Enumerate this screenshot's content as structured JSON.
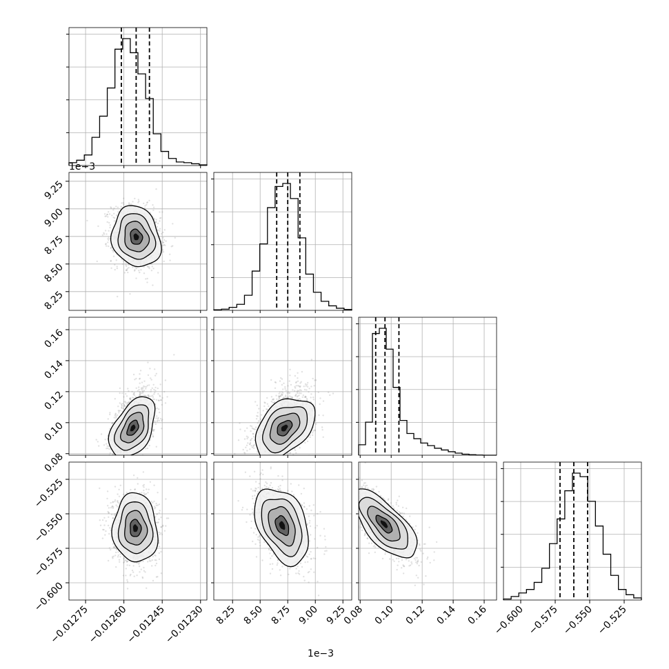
{
  "chart_data": {
    "type": "corner",
    "grid": true,
    "n_params": 4,
    "params": [
      {
        "range": [
          -0.012815,
          -0.012275
        ],
        "ticks": [
          -0.01275,
          -0.0126,
          -0.01245,
          -0.0123
        ],
        "tick_labels": [
          "−0.01275",
          "−0.01260",
          "−0.01245",
          "−0.01230"
        ],
        "offset_text": "",
        "median": -0.012552,
        "q16": -0.01261,
        "q84": -0.0125
      },
      {
        "range": [
          8.08,
          9.33
        ],
        "ticks": [
          8.25,
          8.5,
          8.75,
          9.0,
          9.25
        ],
        "tick_labels": [
          "8.25",
          "8.50",
          "8.75",
          "9.00",
          "9.25"
        ],
        "offset_text": "1e−3",
        "median": 8.75,
        "q16": 8.65,
        "q84": 8.86
      },
      {
        "range": [
          0.079,
          0.168
        ],
        "ticks": [
          0.08,
          0.1,
          0.12,
          0.14,
          0.16
        ],
        "tick_labels": [
          "0.08",
          "0.10",
          "0.12",
          "0.14",
          "0.16"
        ],
        "offset_text": "",
        "median": 0.096,
        "q16": 0.09,
        "q84": 0.105
      },
      {
        "range": [
          -0.6125,
          -0.5125
        ],
        "ticks": [
          -0.6,
          -0.575,
          -0.55,
          -0.525
        ],
        "tick_labels": [
          "−0.600",
          "−0.575",
          "−0.550",
          "−0.525"
        ],
        "offset_text": "",
        "median": -0.5615,
        "q16": -0.5715,
        "q84": -0.5515
      }
    ],
    "histograms": [
      {
        "param": 0,
        "counts": [
          0.8,
          1.5,
          3,
          8,
          14,
          22,
          33,
          36,
          32,
          26,
          19,
          9,
          4,
          2,
          1,
          0.8,
          0.5,
          0.2
        ]
      },
      {
        "param": 1,
        "counts": [
          0.2,
          0.4,
          1,
          2,
          5,
          13,
          22,
          34,
          41,
          42,
          37,
          24,
          12,
          6,
          3,
          1.5,
          0.7,
          0.3
        ]
      },
      {
        "param": 2,
        "counts": [
          0.6,
          1.9,
          7.0,
          7.3,
          6.1,
          3.9,
          2.0,
          1.25,
          0.95,
          0.7,
          0.55,
          0.4,
          0.3,
          0.2,
          0.12,
          0.06,
          0.03,
          0.01,
          0,
          0
        ]
      },
      {
        "param": 3,
        "counts": [
          0.3,
          1,
          2,
          3,
          5,
          9,
          16,
          23,
          31,
          36,
          35,
          28,
          21,
          13,
          7,
          3,
          1.5,
          0.6
        ]
      }
    ],
    "joint": [
      {
        "x_param": 0,
        "y_param": 1,
        "center": [
          -0.012552,
          8.745
        ],
        "sigma": [
          4.75e-05,
          0.138
        ],
        "rho": -0.15
      },
      {
        "x_param": 0,
        "y_param": 2,
        "center": [
          -0.012565,
          0.0965
        ],
        "sigma": [
          4.45e-05,
          0.0098
        ],
        "rho": 0.45
      },
      {
        "x_param": 1,
        "y_param": 2,
        "center": [
          8.72,
          0.0965
        ],
        "sigma": [
          0.135,
          0.0098
        ],
        "rho": 0.42
      },
      {
        "x_param": 0,
        "y_param": 3,
        "center": [
          -0.012555,
          -0.5605
        ],
        "sigma": [
          4.35e-05,
          0.0125
        ],
        "rho": -0.05
      },
      {
        "x_param": 1,
        "y_param": 3,
        "center": [
          8.7,
          -0.5585
        ],
        "sigma": [
          0.122,
          0.0138
        ],
        "rho": -0.38
      },
      {
        "x_param": 2,
        "y_param": 3,
        "center": [
          0.0955,
          -0.5575
        ],
        "sigma": [
          0.0105,
          0.0125
        ],
        "rho": -0.7
      }
    ],
    "contour_levels_sigma": [
      0.5,
      1.0,
      1.5,
      2.0
    ]
  }
}
